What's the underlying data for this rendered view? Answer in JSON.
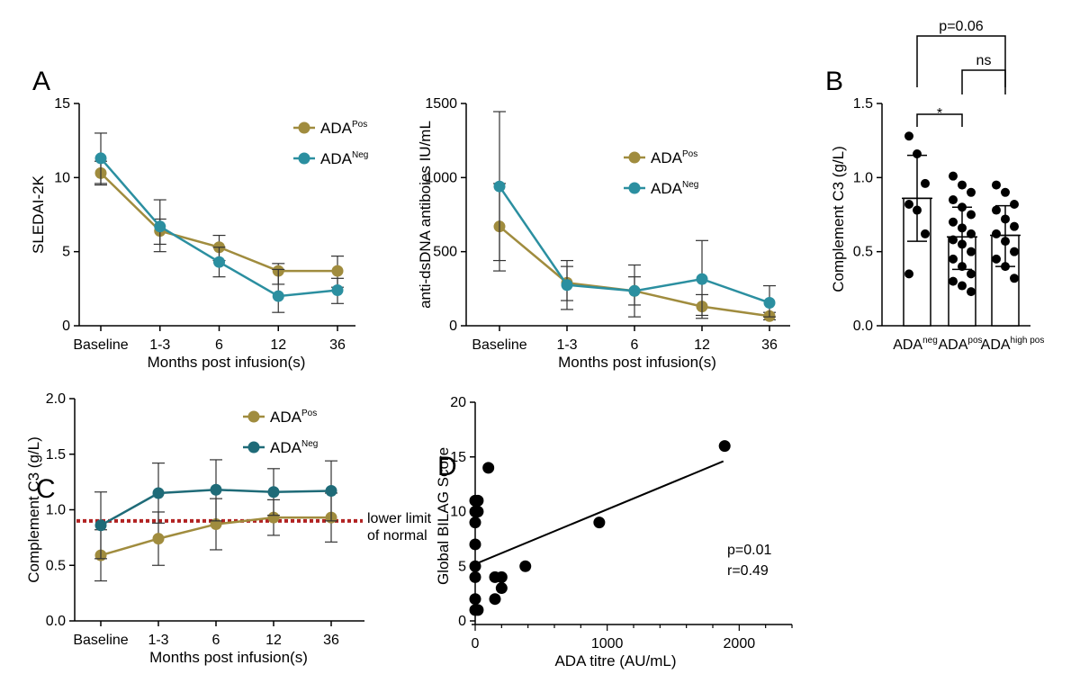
{
  "colors": {
    "pos": "#A08C3E",
    "neg": "#2B8FA0",
    "neg_dark": "#1F6B78",
    "lln": "#B22222",
    "dot": "#000000"
  },
  "chart_data": [
    {
      "id": "A1",
      "panel": "A",
      "type": "line",
      "categories": [
        "Baseline",
        "1-3",
        "6",
        "12",
        "36"
      ],
      "xlabel": "Months post infusion(s)",
      "ylabel": "SLEDAI-2K",
      "ylim": [
        0,
        15
      ],
      "yticks": [
        0,
        5,
        10,
        15
      ],
      "legend": [
        {
          "base": "ADA",
          "sup": "Pos",
          "series": "pos"
        },
        {
          "base": "ADA",
          "sup": "Neg",
          "series": "neg"
        }
      ],
      "series": [
        {
          "key": "pos",
          "values": [
            10.3,
            6.4,
            5.3,
            3.7,
            3.7
          ],
          "lower": [
            9.5,
            5.0,
            4.4,
            2.8,
            2.6
          ],
          "upper": [
            11.1,
            7.2,
            6.1,
            4.2,
            4.7
          ]
        },
        {
          "key": "neg",
          "values": [
            11.3,
            6.7,
            4.3,
            2.0,
            2.4
          ],
          "lower": [
            9.6,
            5.5,
            3.3,
            0.9,
            1.5
          ],
          "upper": [
            13.0,
            8.5,
            5.3,
            3.8,
            3.2
          ]
        }
      ]
    },
    {
      "id": "A2",
      "panel": "",
      "type": "line",
      "categories": [
        "Baseline",
        "1-3",
        "6",
        "12",
        "36"
      ],
      "xlabel": "Months post infusion(s)",
      "ylabel": "anti-dsDNA antiboies IU/mL",
      "ylim": [
        0,
        1500
      ],
      "yticks": [
        0,
        500,
        1000,
        1500
      ],
      "legend": [
        {
          "base": "ADA",
          "sup": "Pos",
          "series": "pos"
        },
        {
          "base": "ADA",
          "sup": "Neg",
          "series": "neg"
        }
      ],
      "series": [
        {
          "key": "pos",
          "values": [
            670,
            290,
            235,
            130,
            65
          ],
          "lower": [
            370,
            110,
            60,
            50,
            40
          ],
          "upper": [
            960,
            440,
            410,
            210,
            90
          ]
        },
        {
          "key": "neg",
          "values": [
            940,
            275,
            235,
            315,
            155
          ],
          "lower": [
            440,
            170,
            140,
            70,
            60
          ],
          "upper": [
            1445,
            400,
            330,
            575,
            270
          ]
        }
      ]
    },
    {
      "id": "B",
      "panel": "B",
      "type": "bar",
      "categories": [
        "ADA",
        "ADA",
        "ADA"
      ],
      "category_sup": [
        "neg",
        "pos",
        "high pos"
      ],
      "ylabel": "Complement C3 (g/L)",
      "ylim": [
        0,
        1.5
      ],
      "yticks": [
        "0.0",
        "0.5",
        "1.0",
        "1.5"
      ],
      "values": [
        0.86,
        0.6,
        0.61
      ],
      "lower": [
        0.57,
        0.38,
        0.4
      ],
      "upper": [
        1.15,
        0.8,
        0.81
      ],
      "points": [
        [
          1.28,
          1.16,
          0.96,
          0.82,
          0.78,
          0.62,
          0.35
        ],
        [
          1.01,
          0.95,
          0.9,
          0.85,
          0.8,
          0.75,
          0.7,
          0.66,
          0.62,
          0.58,
          0.55,
          0.5,
          0.45,
          0.4,
          0.35,
          0.3,
          0.27,
          0.23
        ],
        [
          0.95,
          0.9,
          0.82,
          0.78,
          0.72,
          0.67,
          0.62,
          0.57,
          0.5,
          0.45,
          0.4,
          0.32
        ]
      ],
      "brackets": [
        {
          "from": 0,
          "to": 2,
          "label": "p=0.06"
        },
        {
          "from": 1,
          "to": 2,
          "label": "ns"
        },
        {
          "from": 0,
          "to": 1,
          "label": "*"
        }
      ]
    },
    {
      "id": "C",
      "panel": "C",
      "type": "line",
      "categories": [
        "Baseline",
        "1-3",
        "6",
        "12",
        "36"
      ],
      "xlabel": "Months post infusion(s)",
      "ylabel": "Complement C3 (g/L)",
      "ylim": [
        0,
        2.0
      ],
      "yticks": [
        "0.0",
        "0.5",
        "1.0",
        "1.5",
        "2.0"
      ],
      "legend": [
        {
          "base": "ADA",
          "sup": "Pos",
          "series": "pos"
        },
        {
          "base": "ADA",
          "sup": "Neg",
          "series": "neg_dark"
        }
      ],
      "reference_line": {
        "y": 0.9,
        "label_lines": [
          "lower limit",
          "of normal"
        ]
      },
      "series": [
        {
          "key": "pos",
          "values": [
            0.59,
            0.74,
            0.87,
            0.93,
            0.93
          ],
          "lower": [
            0.36,
            0.5,
            0.64,
            0.77,
            0.71
          ],
          "upper": [
            0.82,
            0.98,
            1.1,
            1.09,
            1.15
          ]
        },
        {
          "key": "neg_dark",
          "values": [
            0.86,
            1.15,
            1.18,
            1.16,
            1.17
          ],
          "lower": [
            0.56,
            0.88,
            0.9,
            0.95,
            0.9
          ],
          "upper": [
            1.16,
            1.42,
            1.45,
            1.37,
            1.44
          ]
        }
      ]
    },
    {
      "id": "D",
      "panel": "D",
      "type": "scatter",
      "xlabel": "ADA titre (AU/mL)",
      "ylabel": "Global BILAG Score",
      "xlim": [
        0,
        2400
      ],
      "xticks": [
        0,
        1000,
        2000
      ],
      "ylim": [
        0,
        20
      ],
      "yticks": [
        0,
        5,
        10,
        15,
        20
      ],
      "points": [
        [
          0,
          11
        ],
        [
          0,
          10
        ],
        [
          0,
          9
        ],
        [
          0,
          7
        ],
        [
          0,
          5
        ],
        [
          0,
          4
        ],
        [
          0,
          2
        ],
        [
          0,
          1
        ],
        [
          20,
          11
        ],
        [
          20,
          10
        ],
        [
          20,
          1
        ],
        [
          100,
          14
        ],
        [
          150,
          4
        ],
        [
          150,
          2
        ],
        [
          200,
          4
        ],
        [
          200,
          3
        ],
        [
          380,
          5
        ],
        [
          940,
          9
        ],
        [
          1890,
          16
        ]
      ],
      "fit": {
        "x": [
          0,
          1880
        ],
        "y": [
          5.2,
          14.6
        ]
      },
      "stats": [
        "p=0.01",
        "r=0.49"
      ]
    }
  ]
}
